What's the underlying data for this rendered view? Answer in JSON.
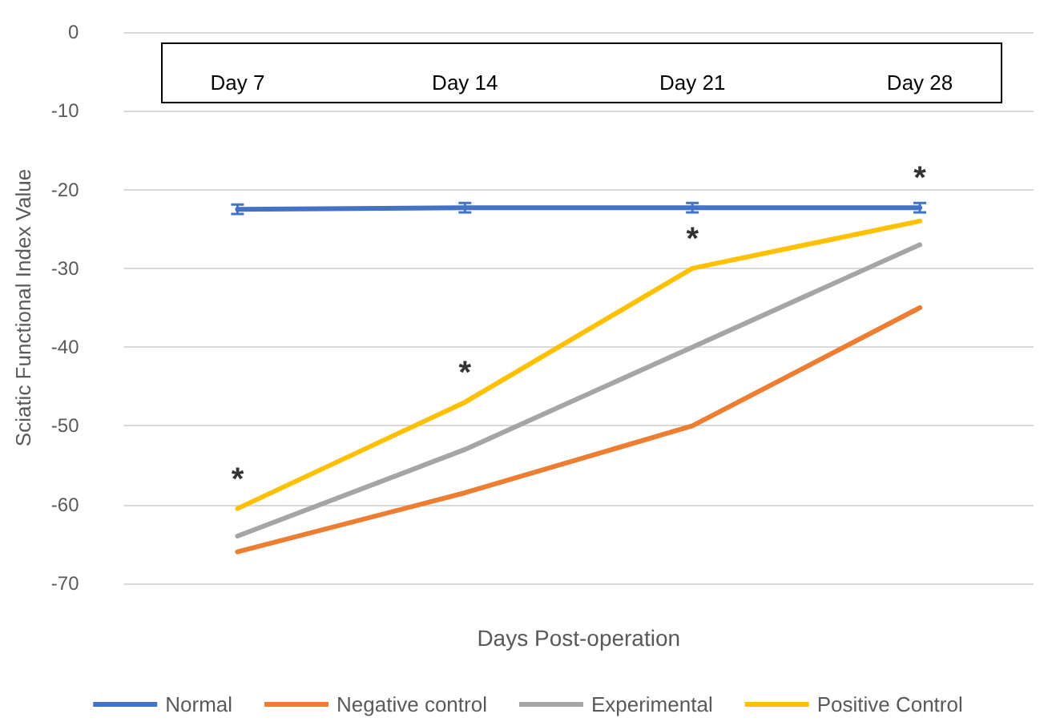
{
  "chart_data": {
    "type": "line",
    "xlabel": "Days Post-operation",
    "ylabel": "Sciatic Functional Index Value",
    "categories": [
      "Day 7",
      "Day 14",
      "Day 21",
      "Day 28"
    ],
    "series": [
      {
        "name": "Normal",
        "color": "#4472c4",
        "values": [
          -22.5,
          -22.3,
          -22.3,
          -22.3
        ],
        "errors": [
          0.6,
          0.6,
          0.6,
          0.6
        ]
      },
      {
        "name": "Negative control",
        "color": "#ed7d31",
        "values": [
          -66,
          -58.5,
          -50,
          -35
        ]
      },
      {
        "name": "Experimental",
        "color": "#a5a5a5",
        "values": [
          -64,
          -53,
          -40,
          -27
        ]
      },
      {
        "name": "Positive Control",
        "color": "#ffc000",
        "values": [
          -60.5,
          -47,
          -30,
          -24
        ]
      }
    ],
    "ylim": [
      -70,
      0
    ],
    "yticks": [
      -70,
      -60,
      -50,
      -40,
      -30,
      -20,
      -10,
      0
    ],
    "grid": "y",
    "legend": "bottom",
    "marker": "none",
    "line_style": "solid",
    "annotations": [
      {
        "text": "*",
        "x": "Day 7",
        "y": -60.5
      },
      {
        "text": "*",
        "x": "Day 14",
        "y": -47
      },
      {
        "text": "*",
        "x": "Day 21",
        "y": -30
      },
      {
        "text": "*",
        "x": "Day 28",
        "y": -22.3
      }
    ]
  }
}
